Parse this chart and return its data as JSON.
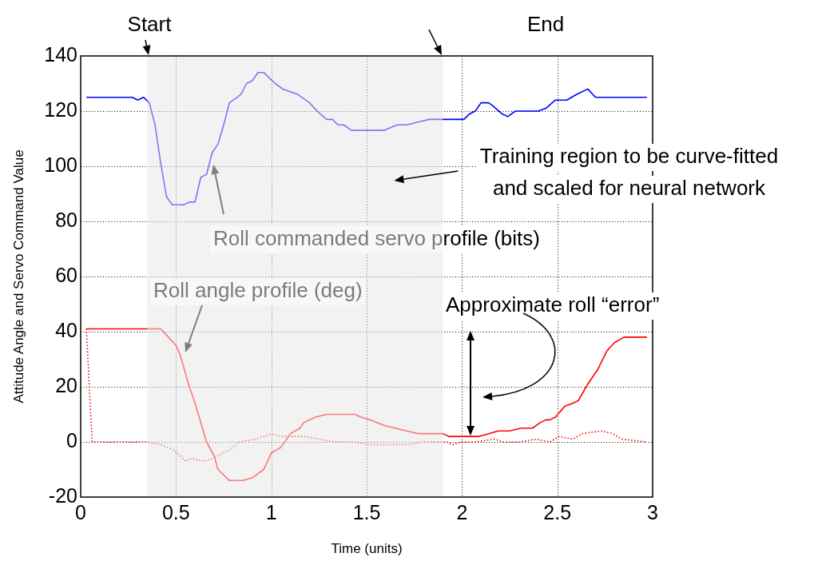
{
  "chart_data": {
    "type": "line",
    "xlabel": "Time (units)",
    "ylabel": "Attitude Angle and Servo Command Value",
    "xlim": [
      0,
      3
    ],
    "xticks": [
      0,
      0.5,
      1,
      1.5,
      2,
      2.5,
      3
    ],
    "ylim": [
      -20,
      140
    ],
    "yticks": [
      -20,
      0,
      20,
      40,
      60,
      80,
      100,
      120,
      140
    ],
    "grid": true,
    "series": [
      {
        "color": "#0000ff",
        "x": [
          0.03,
          0.27,
          0.3,
          0.33,
          0.36,
          0.39,
          0.42,
          0.45,
          0.48,
          0.54,
          0.57,
          0.6,
          0.63,
          0.66,
          0.69,
          0.72,
          0.75,
          0.78,
          0.84,
          0.87,
          0.9,
          0.93,
          0.96,
          0.99,
          1.02,
          1.06,
          1.1,
          1.14,
          1.18,
          1.2,
          1.24,
          1.29,
          1.32,
          1.35,
          1.38,
          1.42,
          1.44,
          1.5,
          1.54,
          1.59,
          1.66,
          1.71,
          1.77,
          1.83,
          1.9,
          1.97,
          2.01,
          2.04,
          2.07,
          2.1,
          2.14,
          2.16,
          2.21,
          2.24,
          2.28,
          2.34,
          2.4,
          2.44,
          2.49,
          2.55,
          2.6,
          2.66,
          2.7,
          2.97
        ],
        "values": [
          125,
          125,
          124,
          125,
          123,
          115,
          101,
          89,
          86,
          86,
          87,
          87,
          96,
          97,
          105,
          108,
          115,
          123,
          126,
          130,
          131,
          134,
          134,
          132,
          130,
          128,
          127,
          126,
          124,
          123,
          120,
          117,
          117,
          115,
          115,
          113,
          113,
          113,
          113,
          113,
          115,
          115,
          116,
          117,
          117,
          117,
          117,
          119,
          120,
          123,
          123,
          122,
          119,
          118,
          120,
          120,
          120,
          121,
          124,
          124,
          126,
          128,
          125,
          125
        ]
      },
      {
        "color": "#ff0000",
        "x": [
          0.03,
          0.35,
          0.42,
          0.46,
          0.5,
          0.52,
          0.57,
          0.6,
          0.63,
          0.66,
          0.7,
          0.72,
          0.75,
          0.78,
          0.85,
          0.9,
          0.96,
          1,
          1.05,
          1.1,
          1.15,
          1.17,
          1.23,
          1.29,
          1.35,
          1.39,
          1.44,
          1.47,
          1.52,
          1.59,
          1.65,
          1.71,
          1.77,
          1.83,
          1.9,
          1.93,
          1.98,
          2.03,
          2.09,
          2.14,
          2.19,
          2.25,
          2.31,
          2.37,
          2.41,
          2.44,
          2.46,
          2.49,
          2.54,
          2.58,
          2.61,
          2.66,
          2.71,
          2.76,
          2.8,
          2.85,
          2.89,
          2.93,
          2.97
        ],
        "values": [
          41,
          41,
          41,
          38,
          35,
          32,
          20,
          14,
          7,
          0,
          -5,
          -10,
          -12,
          -14,
          -14,
          -13,
          -10,
          -4,
          -2,
          3,
          5,
          7,
          9,
          10,
          10,
          10,
          10,
          9,
          8,
          6,
          5,
          4,
          3,
          3,
          3,
          2,
          2,
          2,
          2,
          3,
          4,
          4,
          5,
          5,
          7,
          8,
          8,
          9,
          13,
          14,
          15,
          21,
          26,
          33,
          36,
          38,
          38,
          38,
          38
        ]
      },
      {
        "color": "#ff0000",
        "line_style": "dotted",
        "x": [
          0.03,
          0.06,
          0.35,
          0.42,
          0.49,
          0.55,
          0.58,
          0.64,
          0.69,
          0.78,
          0.83,
          0.92,
          1,
          1.05,
          1.17,
          1.25,
          1.33,
          1.43,
          1.52,
          1.61,
          1.72,
          1.8,
          1.92,
          1.95,
          2,
          2.07,
          2.17,
          2.22,
          2.3,
          2.39,
          2.46,
          2.51,
          2.58,
          2.63,
          2.73,
          2.79,
          2.84,
          2.97
        ],
        "values": [
          41,
          0,
          0,
          -1,
          -3,
          -7,
          -6,
          -7,
          -6,
          -3,
          0,
          1,
          3,
          2,
          2,
          1,
          0,
          0,
          -1,
          -1,
          -1,
          0,
          0,
          -1,
          0,
          0,
          1,
          0,
          0,
          1,
          0,
          2,
          1,
          3,
          4,
          3,
          1,
          0
        ]
      }
    ],
    "bands": [
      {
        "axis": "x",
        "from": 0.35,
        "to": 1.9,
        "label": "Training region to be curve-fitted and scaled for neural network",
        "color": "#f2f2f2"
      }
    ],
    "annotations": [
      "Start",
      "End",
      "Roll commanded servo profile (bits)",
      "Roll angle profile (deg)",
      "Approximate roll “error”"
    ]
  }
}
